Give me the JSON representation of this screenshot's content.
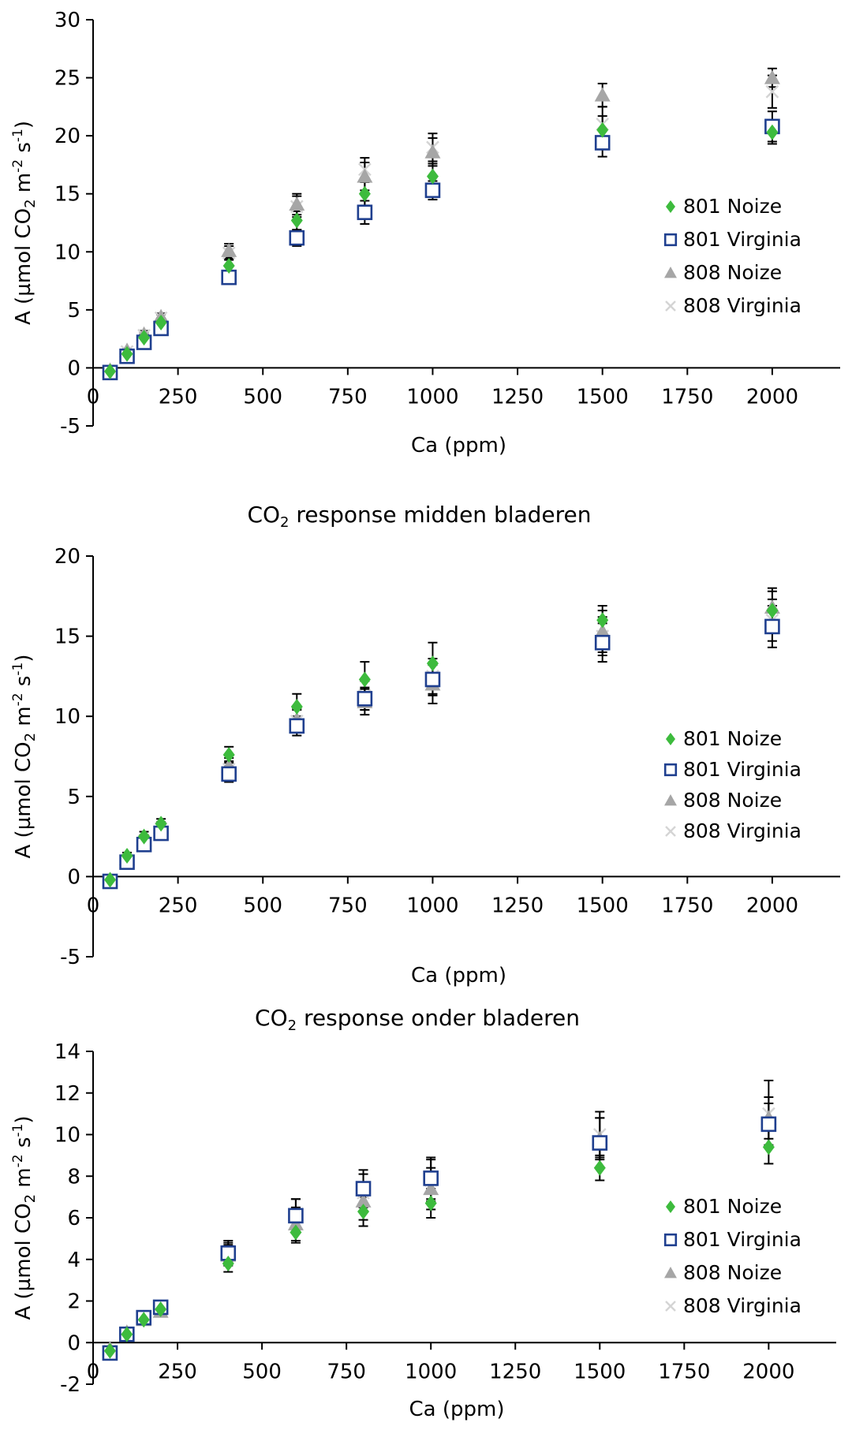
{
  "legend_names": [
    "801 Noize",
    "801 Virginia",
    "808 Noize",
    "808 Virginia"
  ],
  "colors": {
    "801 Noize": "#3dbb3d",
    "801 Virginia": "#1f3f8f",
    "808 Noize": "#a6a6a6",
    "808 Virginia": "#d4d4d4"
  },
  "chart_data": [
    {
      "type": "scatter",
      "title": "",
      "title_sub": "",
      "title_rest": "",
      "xlabel": "Ca (ppm)",
      "ylabel": "A (µmol CO2 m-2 s-1)",
      "xlim": [
        0,
        2200
      ],
      "ylim": [
        -5,
        30
      ],
      "xticks": [
        0,
        250,
        500,
        750,
        1000,
        1250,
        1500,
        1750,
        2000
      ],
      "yticks": [
        -5,
        0,
        5,
        10,
        15,
        20,
        25,
        30
      ],
      "legend_position": "right",
      "series": [
        {
          "name": "801 Noize",
          "x": [
            50,
            100,
            150,
            200,
            400,
            600,
            800,
            1000,
            1500,
            2000
          ],
          "y": [
            -0.3,
            1.2,
            2.6,
            3.9,
            8.8,
            12.7,
            15.0,
            16.5,
            20.5,
            20.3
          ],
          "err": [
            0.2,
            0.2,
            0.3,
            0.3,
            0.6,
            0.8,
            1.0,
            1.1,
            1.2,
            1.0
          ]
        },
        {
          "name": "801 Virginia",
          "x": [
            50,
            100,
            150,
            200,
            400,
            600,
            800,
            1000,
            1500,
            2000
          ],
          "y": [
            -0.4,
            1.0,
            2.2,
            3.4,
            7.8,
            11.2,
            13.4,
            15.3,
            19.4,
            20.8
          ],
          "err": [
            0.2,
            0.2,
            0.3,
            0.3,
            0.5,
            0.7,
            1.0,
            0.8,
            1.2,
            1.3
          ]
        },
        {
          "name": "808 Noize",
          "x": [
            50,
            100,
            150,
            200,
            400,
            600,
            800,
            1000,
            1500,
            2000
          ],
          "y": [
            -0.2,
            1.5,
            2.9,
            4.4,
            10.1,
            14.1,
            16.5,
            18.6,
            23.5,
            25.0
          ],
          "err": [
            0.2,
            0.2,
            0.3,
            0.3,
            0.6,
            0.9,
            1.2,
            1.2,
            1.0,
            0.8
          ]
        },
        {
          "name": "808 Virginia",
          "x": [
            50,
            100,
            150,
            200,
            400,
            600,
            800,
            1000,
            1500,
            2000
          ],
          "y": [
            -0.3,
            1.4,
            2.8,
            4.3,
            9.9,
            13.9,
            17.1,
            19.0,
            21.0,
            23.8
          ],
          "err": [
            0.2,
            0.2,
            0.3,
            0.3,
            0.6,
            0.9,
            1.0,
            1.2,
            1.5,
            1.4
          ]
        }
      ]
    },
    {
      "type": "scatter",
      "title": "CO2 response midden bladeren",
      "title_sub": "2",
      "title_rest": " response midden bladeren",
      "xlabel": "Ca (ppm)",
      "ylabel": "A (µmol CO2 m-2 s-1)",
      "xlim": [
        0,
        2200
      ],
      "ylim": [
        -5,
        20
      ],
      "xticks": [
        0,
        250,
        500,
        750,
        1000,
        1250,
        1500,
        1750,
        2000
      ],
      "yticks": [
        -5,
        0,
        5,
        10,
        15,
        20
      ],
      "legend_position": "right",
      "series": [
        {
          "name": "801 Noize",
          "x": [
            50,
            100,
            150,
            200,
            400,
            600,
            800,
            1000,
            1500,
            2000
          ],
          "y": [
            -0.2,
            1.3,
            2.5,
            3.3,
            7.6,
            10.6,
            12.3,
            13.3,
            16.0,
            16.6
          ],
          "err": [
            0.2,
            0.2,
            0.3,
            0.3,
            0.5,
            0.8,
            1.1,
            1.3,
            0.9,
            1.2
          ]
        },
        {
          "name": "801 Virginia",
          "x": [
            50,
            100,
            150,
            200,
            400,
            600,
            800,
            1000,
            1500,
            2000
          ],
          "y": [
            -0.3,
            0.9,
            2.0,
            2.7,
            6.4,
            9.4,
            11.1,
            12.3,
            14.6,
            15.6
          ],
          "err": [
            0.2,
            0.2,
            0.3,
            0.3,
            0.5,
            0.6,
            0.7,
            1.0,
            1.2,
            1.3
          ]
        },
        {
          "name": "808 Noize",
          "x": [
            50,
            100,
            150,
            200,
            400,
            600,
            800,
            1000,
            1500,
            2000
          ],
          "y": [
            -0.2,
            1.1,
            2.3,
            3.1,
            6.9,
            9.8,
            10.9,
            12.0,
            15.3,
            16.8
          ],
          "err": [
            0.2,
            0.2,
            0.3,
            0.3,
            0.5,
            0.7,
            0.8,
            1.2,
            1.3,
            1.2
          ]
        },
        {
          "name": "808 Virginia",
          "x": [
            50,
            100,
            150,
            200,
            400,
            600,
            800,
            1000,
            1500,
            2000
          ],
          "y": [
            -0.3,
            1.0,
            2.2,
            3.0,
            6.7,
            9.7,
            11.3,
            12.5,
            15.0,
            16.0
          ],
          "err": [
            0.2,
            0.2,
            0.3,
            0.3,
            0.5,
            0.7,
            0.9,
            1.1,
            1.2,
            1.3
          ]
        }
      ]
    },
    {
      "type": "scatter",
      "title": "CO2 response onder bladeren",
      "title_sub": "2",
      "title_rest": " response onder bladeren",
      "xlabel": "Ca (ppm)",
      "ylabel": "A (µmol CO2 m-2 s-1)",
      "xlim": [
        0,
        2200
      ],
      "ylim": [
        -2,
        14
      ],
      "xticks": [
        0,
        250,
        500,
        750,
        1000,
        1250,
        1500,
        1750,
        2000
      ],
      "yticks": [
        -2,
        0,
        2,
        4,
        6,
        8,
        10,
        12,
        14
      ],
      "legend_position": "right",
      "series": [
        {
          "name": "801 Noize",
          "x": [
            50,
            100,
            150,
            200,
            400,
            600,
            800,
            1000,
            1500,
            2000
          ],
          "y": [
            -0.4,
            0.4,
            1.1,
            1.6,
            3.8,
            5.3,
            6.3,
            6.7,
            8.4,
            9.4
          ],
          "err": [
            0.1,
            0.1,
            0.2,
            0.2,
            0.4,
            0.5,
            0.7,
            0.7,
            0.6,
            0.8
          ]
        },
        {
          "name": "801 Virginia",
          "x": [
            50,
            100,
            150,
            200,
            400,
            600,
            800,
            1000,
            1500,
            2000
          ],
          "y": [
            -0.5,
            0.4,
            1.2,
            1.7,
            4.3,
            6.1,
            7.4,
            7.9,
            9.6,
            10.5
          ],
          "err": [
            0.1,
            0.1,
            0.2,
            0.2,
            0.5,
            0.8,
            0.9,
            1.0,
            1.2,
            1.0
          ]
        },
        {
          "name": "808 Noize",
          "x": [
            50,
            100,
            150,
            200,
            400,
            600,
            800,
            1000,
            1500,
            2000
          ],
          "y": [
            -0.3,
            0.5,
            1.1,
            1.5,
            4.2,
            5.7,
            6.8,
            7.4,
            9.8,
            10.8
          ],
          "err": [
            0.1,
            0.1,
            0.2,
            0.2,
            0.5,
            0.8,
            0.9,
            1.0,
            1.0,
            1.0
          ]
        },
        {
          "name": "808 Virginia",
          "x": [
            50,
            100,
            150,
            200,
            400,
            600,
            800,
            1000,
            1500,
            2000
          ],
          "y": [
            -0.4,
            0.4,
            1.2,
            1.6,
            4.4,
            6.1,
            7.2,
            7.8,
            10.0,
            11.0
          ],
          "err": [
            0.1,
            0.1,
            0.2,
            0.2,
            0.5,
            0.8,
            0.9,
            1.0,
            1.1,
            1.6
          ]
        }
      ]
    }
  ]
}
